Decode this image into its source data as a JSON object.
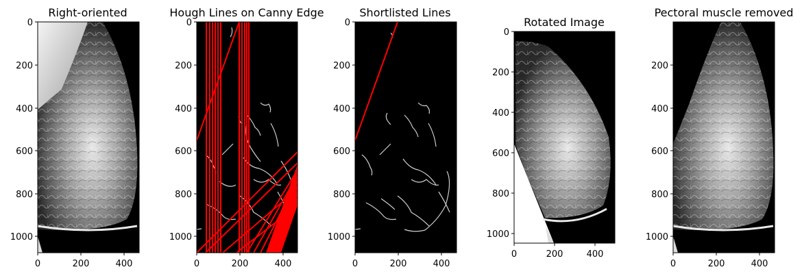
{
  "figure": {
    "panels": [
      {
        "id": "p1",
        "title": "Right-oriented",
        "kind": "mammo",
        "x_ticks": [
          "0",
          "200",
          "400"
        ],
        "y_ticks": [
          "0",
          "200",
          "400",
          "600",
          "800",
          "1000"
        ]
      },
      {
        "id": "p2",
        "title": "Hough Lines on Canny Edge",
        "kind": "edges_all_lines",
        "x_ticks": [
          "0",
          "200",
          "400"
        ],
        "y_ticks": [
          "0",
          "200",
          "400",
          "600",
          "800",
          "1000"
        ]
      },
      {
        "id": "p3",
        "title": "Shortlisted Lines",
        "kind": "edges_short_lines",
        "x_ticks": [
          "0",
          "200",
          "400"
        ],
        "y_ticks": [
          "0",
          "200",
          "400",
          "600",
          "800",
          "1000"
        ]
      },
      {
        "id": "p4",
        "title": "Rotated Image",
        "kind": "rotated",
        "x_ticks": [
          "0",
          "200",
          "400"
        ],
        "y_ticks": [
          "0",
          "200",
          "400",
          "600",
          "800",
          "1000"
        ]
      },
      {
        "id": "p5",
        "title": "Pectoral muscle removed",
        "kind": "removed",
        "x_ticks": [
          "0",
          "200",
          "400"
        ],
        "y_ticks": [
          "200",
          "400",
          "600",
          "800",
          "1000"
        ]
      }
    ],
    "colors": {
      "image_bg": "#000000",
      "tissue": "#bdbdbd",
      "hough_line": "#ff0000",
      "edge": "#cfcfcf"
    }
  }
}
